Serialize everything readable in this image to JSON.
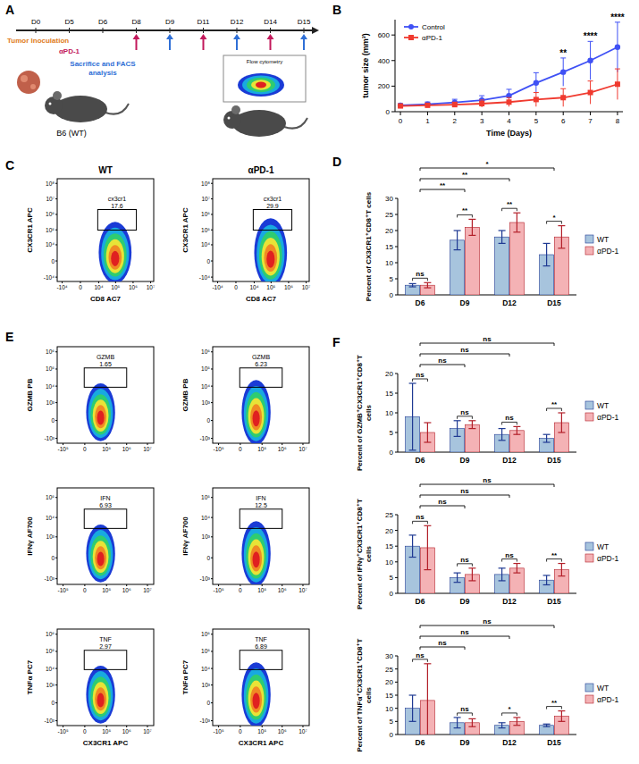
{
  "schematic": {
    "panel": "A",
    "days": [
      "D0",
      "D5",
      "D6",
      "D8",
      "D9",
      "D11",
      "D12",
      "D14",
      "D15"
    ],
    "inoculation": "Tumor Inoculation",
    "treatment": "αPD-1",
    "treatment_start": "D5",
    "treatment_days": [
      "D8",
      "D11",
      "D14"
    ],
    "analysis": "Sacrifice and FACS analysis",
    "analysis_start": "D6",
    "analysis_days": [
      "D9",
      "D12",
      "D15"
    ],
    "mouse": "B6 (WT)",
    "inset": "Flow cytometry"
  },
  "chart_data": [
    {
      "type": "line",
      "panel": "B",
      "x_label": "Time (Days)",
      "y_label": "tumor size (mm³)",
      "x": [
        0,
        1,
        2,
        3,
        4,
        5,
        6,
        7,
        8
      ],
      "xlim": [
        -0.2,
        8.2
      ],
      "xticks": [
        0,
        1,
        2,
        3,
        4,
        5,
        6,
        7,
        8
      ],
      "ylim": [
        0,
        720
      ],
      "yticks": [
        0,
        200,
        400,
        600
      ],
      "legend": "top-left",
      "series": [
        {
          "name": "Control",
          "color": "#3f51f5",
          "marker": "circle",
          "values": [
            50,
            58,
            72,
            90,
            125,
            225,
            310,
            400,
            505
          ],
          "errors": [
            12,
            18,
            25,
            35,
            50,
            80,
            110,
            150,
            195
          ]
        },
        {
          "name": "αPD-1",
          "color": "#f03a2f",
          "marker": "square",
          "values": [
            45,
            50,
            55,
            63,
            75,
            95,
            110,
            150,
            215
          ],
          "errors": [
            10,
            15,
            20,
            28,
            35,
            55,
            70,
            90,
            120
          ]
        }
      ],
      "annotations": [
        {
          "x": 6,
          "label": "**"
        },
        {
          "x": 7,
          "label": "****"
        },
        {
          "x": 8,
          "label": "****"
        }
      ]
    },
    {
      "type": "flow",
      "panel": "C",
      "column_titles": [
        "WT",
        "αPD-1"
      ],
      "x_label": "CD8 AC7",
      "xlim": [
        -20000,
        15000000
      ],
      "xticks": [
        {
          "value": -10000,
          "label": "-10⁴"
        },
        0,
        {
          "value": 10000,
          "label": "10⁴"
        },
        {
          "value": 100000,
          "label": "10⁵"
        },
        {
          "value": 1000000,
          "label": "10⁶"
        },
        {
          "value": 10000000,
          "label": "10⁷"
        }
      ],
      "rows": [
        {
          "y_label": "CX3CR1 APC",
          "ylim": [
            -20000,
            200000000
          ],
          "yticks": [
            {
              "value": -10000,
              "label": "-10⁴"
            },
            0,
            {
              "value": 10000,
              "label": "10⁴"
            },
            {
              "value": 100000,
              "label": "10⁵"
            },
            {
              "value": 1000000,
              "label": "10⁶"
            },
            {
              "value": 10000000,
              "label": "10⁷"
            },
            {
              "value": 100000000,
              "label": "10⁸"
            }
          ],
          "gate_label": "cx3cr1",
          "gate_values": [
            17.6,
            29.9
          ]
        }
      ]
    },
    {
      "type": "bar",
      "panel": "D",
      "y_label": "Percent of CX3CR1⁺CD8⁺T cells",
      "categories": [
        "D6",
        "D9",
        "D12",
        "D15"
      ],
      "ylim": [
        0,
        30
      ],
      "yticks": [
        0,
        5,
        10,
        15,
        20,
        25,
        30
      ],
      "legend": "right",
      "series": [
        {
          "name": "WT",
          "color": "#a7c4dd",
          "values": [
            3,
            17,
            18,
            12.5
          ],
          "errors": [
            0.5,
            3,
            2,
            3.5
          ]
        },
        {
          "name": "αPD-1",
          "color": "#f4b2b5",
          "values": [
            3,
            21,
            22.5,
            18
          ],
          "errors": [
            0.8,
            2.5,
            3,
            3.5
          ]
        }
      ],
      "pair_labels": [
        "ns",
        "**",
        "**",
        "*"
      ],
      "vs_first": [
        {
          "category": "D9",
          "label": "**"
        },
        {
          "category": "D12",
          "label": "**"
        },
        {
          "category": "D15",
          "label": "*"
        }
      ]
    },
    {
      "type": "flow",
      "panel": "E",
      "x_label": "CX3CR1 APC",
      "xlim": [
        -200000,
        20000000
      ],
      "xticks": [
        {
          "value": -100000,
          "label": "-10⁵"
        },
        0,
        {
          "value": 100000,
          "label": "10⁵"
        },
        {
          "value": 1000000,
          "label": "10⁶"
        },
        {
          "value": 10000000,
          "label": "10⁷"
        }
      ],
      "rows": [
        {
          "y_label": "GZMB PB",
          "ylim": [
            -2000,
            2000000
          ],
          "yticks": [
            {
              "value": -1000,
              "label": "-10³"
            },
            0,
            {
              "value": 1000,
              "label": "10³"
            },
            {
              "value": 10000,
              "label": "10⁴"
            },
            {
              "value": 100000,
              "label": "10⁵"
            },
            {
              "value": 1000000,
              "label": "10⁶"
            }
          ],
          "gate_label": "GZMB",
          "gate_values": [
            1.65,
            6.23
          ]
        },
        {
          "y_label": "IFNγ AF700",
          "ylim": [
            -2000,
            300000
          ],
          "yticks": [
            {
              "value": -1000,
              "label": "-10³"
            },
            0,
            {
              "value": 1000,
              "label": "10³"
            },
            {
              "value": 10000,
              "label": "10⁴"
            },
            {
              "value": 100000,
              "label": "10⁵"
            }
          ],
          "gate_label": "IFN",
          "gate_values": [
            6.93,
            12.5
          ]
        },
        {
          "y_label": "TNFα PC7",
          "ylim": [
            -2000,
            2000000
          ],
          "yticks": [
            {
              "value": -1000,
              "label": "-10³"
            },
            0,
            {
              "value": 1000,
              "label": "10³"
            },
            {
              "value": 10000,
              "label": "10⁴"
            },
            {
              "value": 100000,
              "label": "10⁵"
            },
            {
              "value": 1000000,
              "label": "10⁶"
            }
          ],
          "gate_label": "TNF",
          "gate_values": [
            2.97,
            6.89
          ]
        }
      ]
    },
    {
      "type": "bar",
      "panel": "F",
      "y_label": "Percent of GZMB⁺CX3CR1⁺CD8⁺T cells",
      "categories": [
        "D6",
        "D9",
        "D12",
        "D15"
      ],
      "ylim": [
        0,
        20
      ],
      "yticks": [
        0,
        5,
        10,
        15,
        20
      ],
      "legend": "right",
      "series": [
        {
          "name": "WT",
          "color": "#a7c4dd",
          "values": [
            9,
            6,
            4.5,
            3.5
          ],
          "errors": [
            8.5,
            2,
            1.5,
            1
          ]
        },
        {
          "name": "αPD-1",
          "color": "#f4b2b5",
          "values": [
            5,
            7,
            5.5,
            7.5
          ],
          "errors": [
            2.5,
            1,
            1,
            2.5
          ]
        }
      ],
      "pair_labels": [
        "ns",
        "ns",
        "ns",
        "**"
      ],
      "vs_first": [
        {
          "category": "D9",
          "label": "ns"
        },
        {
          "category": "D12",
          "label": "ns"
        },
        {
          "category": "D15",
          "label": "ns"
        }
      ]
    },
    {
      "type": "bar",
      "y_label": "Percent of IFNγ⁺CX3CR1⁺CD8⁺T cells",
      "categories": [
        "D6",
        "D9",
        "D12",
        "D15"
      ],
      "ylim": [
        0,
        25
      ],
      "yticks": [
        0,
        5,
        10,
        15,
        20,
        25
      ],
      "legend": "right",
      "series": [
        {
          "name": "WT",
          "color": "#a7c4dd",
          "values": [
            15,
            5,
            6,
            4.2
          ],
          "errors": [
            3.5,
            1.5,
            2,
            1.5
          ]
        },
        {
          "name": "αPD-1",
          "color": "#f4b2b5",
          "values": [
            14.5,
            6,
            8,
            7.5
          ],
          "errors": [
            7,
            2,
            1.5,
            2
          ]
        }
      ],
      "pair_labels": [
        "ns",
        "ns",
        "ns",
        "**"
      ],
      "vs_first": [
        {
          "category": "D9",
          "label": "ns"
        },
        {
          "category": "D12",
          "label": "ns"
        },
        {
          "category": "D15",
          "label": "ns"
        }
      ]
    },
    {
      "type": "bar",
      "y_label": "Percent of TNFα⁺CX3CR1⁺CD8⁺T cells",
      "categories": [
        "D6",
        "D9",
        "D12",
        "D15"
      ],
      "ylim": [
        0,
        30
      ],
      "yticks": [
        0,
        5,
        10,
        15,
        20,
        25,
        30
      ],
      "legend": "right",
      "series": [
        {
          "name": "WT",
          "color": "#a7c4dd",
          "values": [
            10,
            4.5,
            3.5,
            3.5
          ],
          "errors": [
            5,
            2,
            1,
            0.5
          ]
        },
        {
          "name": "αPD-1",
          "color": "#f4b2b5",
          "values": [
            13,
            4.5,
            5,
            7
          ],
          "errors": [
            14,
            1.5,
            1.5,
            2
          ]
        }
      ],
      "pair_labels": [
        "ns",
        "ns",
        "*",
        "**"
      ],
      "vs_first": [
        {
          "category": "D9",
          "label": "ns"
        },
        {
          "category": "D12",
          "label": "ns"
        },
        {
          "category": "D15",
          "label": "ns"
        }
      ]
    }
  ]
}
